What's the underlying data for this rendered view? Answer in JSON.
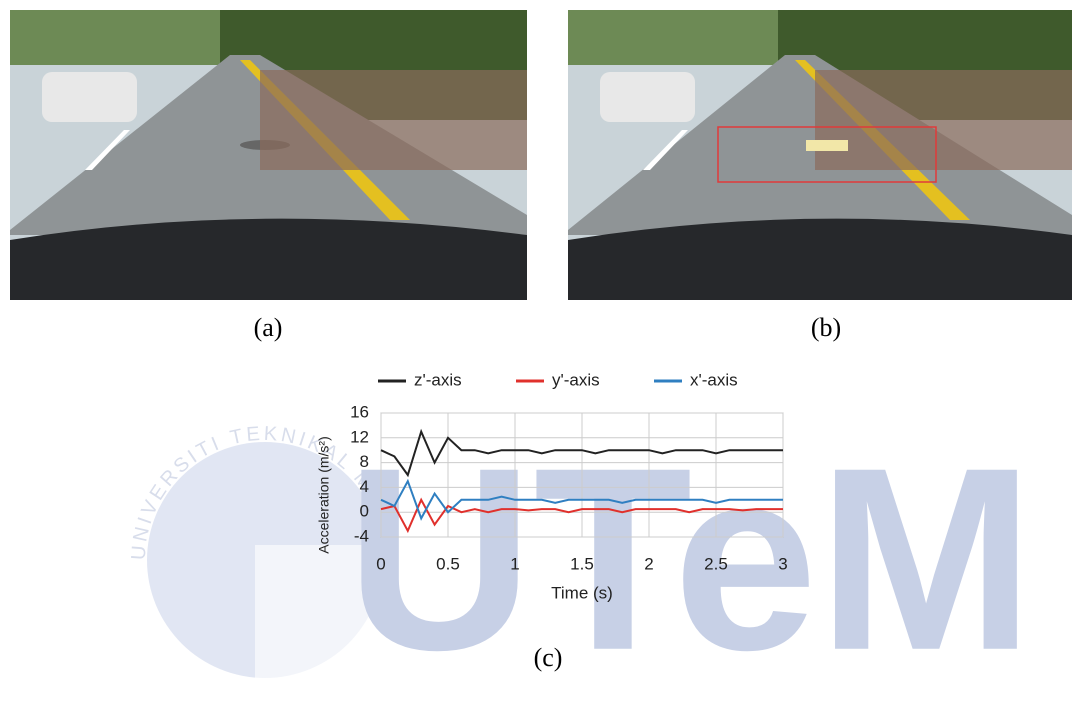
{
  "figure": {
    "panel_labels": [
      "(a)",
      "(b)",
      "(c)"
    ],
    "watermark": {
      "logo": "UTeM",
      "ring": "UNIVERSITI TEKNIKAL MALAYSIA MELAKA"
    }
  },
  "chart_data": {
    "type": "line",
    "x_label": "Time (s)",
    "y_label": "Acceleration (m/s²)",
    "x": [
      0,
      0.1,
      0.2,
      0.3,
      0.4,
      0.5,
      0.6,
      0.7,
      0.8,
      0.9,
      1,
      1.1,
      1.2,
      1.3,
      1.4,
      1.5,
      1.6,
      1.7,
      1.8,
      1.9,
      2,
      2.1,
      2.2,
      2.3,
      2.4,
      2.5,
      2.6,
      2.7,
      2.8,
      2.9,
      3
    ],
    "series": [
      {
        "name": "z'-axis",
        "color": "#222222",
        "values": [
          10,
          9,
          6,
          13,
          8,
          12,
          10,
          10,
          9.5,
          10,
          10,
          10,
          9.5,
          10,
          10,
          10,
          9.5,
          10,
          10,
          10,
          10,
          9.5,
          10,
          10,
          10,
          9.5,
          10,
          10,
          10,
          10,
          10
        ]
      },
      {
        "name": "y'-axis",
        "color": "#e0302c",
        "values": [
          0.5,
          1,
          -3,
          2,
          -2,
          1,
          0,
          0.5,
          0,
          0.5,
          0.5,
          0.3,
          0.5,
          0.5,
          0,
          0.5,
          0.5,
          0.5,
          0,
          0.5,
          0.5,
          0.5,
          0.5,
          0,
          0.5,
          0.5,
          0.5,
          0.3,
          0.5,
          0.5,
          0.5
        ]
      },
      {
        "name": "x'-axis",
        "color": "#2f7fc1",
        "values": [
          2,
          1,
          5,
          -1,
          3,
          0,
          2,
          2,
          2,
          2.5,
          2,
          2,
          2,
          1.5,
          2,
          2,
          2,
          2,
          1.5,
          2,
          2,
          2,
          2,
          2,
          2,
          1.5,
          2,
          2,
          2,
          2,
          2
        ]
      }
    ],
    "xlim": [
      0,
      3
    ],
    "xticks": [
      0,
      0.5,
      1,
      1.5,
      2,
      2.5,
      3
    ],
    "ylim": [
      -4,
      16
    ],
    "yticks": [
      -4,
      0,
      4,
      8,
      12,
      16
    ],
    "grid": true,
    "legend": "top"
  }
}
